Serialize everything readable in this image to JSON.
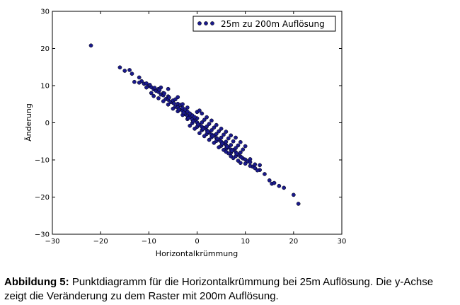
{
  "chart_data": {
    "type": "scatter",
    "title": "",
    "xlabel": "Horizontalkrümmung",
    "ylabel": "Änderung",
    "xlim": [
      -30,
      30
    ],
    "ylim": [
      -30,
      30
    ],
    "xticks": [
      -30,
      -20,
      -10,
      0,
      10,
      20,
      30
    ],
    "yticks": [
      -30,
      -20,
      -10,
      0,
      10,
      20,
      30
    ],
    "grid": false,
    "legend_position": "top-right",
    "marker_color": "#1a1a8c",
    "series": [
      {
        "name": "25m zu 200m Auflösung",
        "color": "#1a1a8c",
        "points": [
          [
            -22,
            20.8
          ],
          [
            -16,
            14.9
          ],
          [
            -15,
            14.0
          ],
          [
            -14,
            14.2
          ],
          [
            -13.5,
            13.2
          ],
          [
            -12,
            12.2
          ],
          [
            -11.5,
            11.2
          ],
          [
            -11,
            10.5
          ],
          [
            -12,
            10.8
          ],
          [
            -10,
            9.9
          ],
          [
            -10.5,
            9.5
          ],
          [
            -9.5,
            9.6
          ],
          [
            -9,
            9.0
          ],
          [
            -8.5,
            8.6
          ],
          [
            -8,
            8.3
          ],
          [
            -7.5,
            7.6
          ],
          [
            -7,
            7.4
          ],
          [
            -6.5,
            6.4
          ],
          [
            -6,
            6.2
          ],
          [
            -5.5,
            5.6
          ],
          [
            -5,
            5.4
          ],
          [
            -4.5,
            4.3
          ],
          [
            -4,
            4.1
          ],
          [
            -3.5,
            3.6
          ],
          [
            -3,
            3.2
          ],
          [
            -2.5,
            2.3
          ],
          [
            -2,
            1.9
          ],
          [
            -1.5,
            1.6
          ],
          [
            -1,
            0.9
          ],
          [
            -0.5,
            0.6
          ],
          [
            0,
            0.1
          ],
          [
            0.5,
            -0.6
          ],
          [
            1,
            -1.1
          ],
          [
            1.5,
            -1.4
          ],
          [
            2,
            -2.0
          ],
          [
            2.5,
            -2.6
          ],
          [
            3,
            -3.2
          ],
          [
            3.5,
            -3.4
          ],
          [
            4,
            -4.1
          ],
          [
            4.5,
            -4.6
          ],
          [
            5,
            -5.1
          ],
          [
            5.5,
            -5.5
          ],
          [
            6,
            -6.0
          ],
          [
            6.5,
            -6.6
          ],
          [
            7,
            -7.2
          ],
          [
            7.5,
            -7.3
          ],
          [
            8,
            -7.9
          ],
          [
            8.5,
            -8.6
          ],
          [
            9,
            -9.1
          ],
          [
            9.5,
            -9.6
          ],
          [
            10,
            -9.9
          ],
          [
            10.5,
            -10.4
          ],
          [
            11,
            -10.6
          ],
          [
            11.5,
            -11.8
          ],
          [
            12,
            -12.2
          ],
          [
            13,
            -12.7
          ],
          [
            14,
            -13.8
          ],
          [
            15,
            -15.5
          ],
          [
            15.5,
            -16.4
          ],
          [
            16,
            -16.2
          ],
          [
            17,
            -17.0
          ],
          [
            18,
            -17.5
          ],
          [
            20,
            -19.4
          ],
          [
            21,
            -21.8
          ],
          [
            -9,
            7.2
          ],
          [
            -8,
            6.6
          ],
          [
            -7,
            5.8
          ],
          [
            -6,
            4.9
          ],
          [
            -5,
            3.8
          ],
          [
            -4,
            3.1
          ],
          [
            -3,
            2.1
          ],
          [
            -2,
            1.0
          ],
          [
            -1,
            -0.1
          ],
          [
            0,
            -1.1
          ],
          [
            1,
            -2.0
          ],
          [
            2,
            -3.0
          ],
          [
            3,
            -3.9
          ],
          [
            4,
            -4.9
          ],
          [
            5,
            -6.2
          ],
          [
            6,
            -7.0
          ],
          [
            7,
            -8.1
          ],
          [
            8,
            -9.0
          ],
          [
            -8,
            9.1
          ],
          [
            -7,
            8.0
          ],
          [
            -6,
            7.1
          ],
          [
            -5,
            6.0
          ],
          [
            -4,
            5.1
          ],
          [
            -3,
            4.0
          ],
          [
            -2,
            3.0
          ],
          [
            -1,
            2.0
          ],
          [
            0,
            1.2
          ],
          [
            1,
            0.1
          ],
          [
            2,
            -1.0
          ],
          [
            3,
            -2.0
          ],
          [
            4,
            -3.0
          ],
          [
            5,
            -4.0
          ],
          [
            6,
            -5.1
          ],
          [
            7,
            -6.0
          ],
          [
            8,
            -6.8
          ],
          [
            9,
            -8.0
          ],
          [
            -6,
            9.1
          ],
          [
            -4,
            6.9
          ],
          [
            -2,
            4.1
          ],
          [
            0,
            2.9
          ],
          [
            0.5,
            3.3
          ],
          [
            1,
            2.5
          ],
          [
            2,
            1.5
          ],
          [
            3,
            0.6
          ],
          [
            4,
            -0.6
          ],
          [
            5,
            -1.6
          ],
          [
            6,
            -2.4
          ],
          [
            7,
            -3.4
          ],
          [
            8,
            -4.0
          ],
          [
            9,
            -5.2
          ],
          [
            10,
            -6.3
          ],
          [
            -1.5,
            -0.8
          ],
          [
            -0.5,
            -1.6
          ],
          [
            0.5,
            -2.8
          ],
          [
            1.5,
            -3.6
          ],
          [
            2.5,
            -4.6
          ],
          [
            3.5,
            -5.4
          ],
          [
            4.5,
            -6.6
          ],
          [
            5.5,
            -7.3
          ],
          [
            6.5,
            -8.2
          ],
          [
            7.5,
            -9.5
          ],
          [
            8.5,
            -10.2
          ],
          [
            10,
            -11.0
          ],
          [
            11,
            -11.6
          ],
          [
            12,
            -11.2
          ],
          [
            12.5,
            -12.8
          ],
          [
            -10.5,
            10.6
          ],
          [
            -7.5,
            9.5
          ],
          [
            -9.5,
            8.0
          ],
          [
            -3.5,
            4.8
          ],
          [
            -2.5,
            3.5
          ],
          [
            -1.5,
            2.5
          ],
          [
            -0.5,
            1.5
          ],
          [
            1.5,
            0.8
          ],
          [
            2.5,
            -0.3
          ],
          [
            3.5,
            -1.3
          ],
          [
            4.5,
            -2.3
          ],
          [
            5.5,
            -3.2
          ],
          [
            6.5,
            -4.2
          ],
          [
            7.5,
            -5.0
          ],
          [
            8.5,
            -6.1
          ],
          [
            9.5,
            -7.2
          ],
          [
            -13,
            11.0
          ],
          [
            -9.8,
            10.2
          ],
          [
            -8.8,
            9.4
          ],
          [
            -7.8,
            8.8
          ],
          [
            -6.8,
            7.9
          ],
          [
            -5.8,
            6.8
          ],
          [
            -4.8,
            5.2
          ],
          [
            -3.8,
            3.6
          ],
          [
            -2.8,
            2.7
          ],
          [
            -1.8,
            1.3
          ],
          [
            -0.8,
            0.4
          ],
          [
            0.2,
            -0.4
          ],
          [
            1.2,
            -1.6
          ],
          [
            2.2,
            -2.4
          ],
          [
            3.2,
            -3.6
          ],
          [
            4.2,
            -4.3
          ],
          [
            5.2,
            -5.6
          ],
          [
            6.2,
            -6.4
          ],
          [
            7.2,
            -7.5
          ],
          [
            8.2,
            -8.3
          ],
          [
            9.2,
            -9.3
          ],
          [
            11,
            -9.8
          ],
          [
            13,
            -11.4
          ],
          [
            -4.5,
            6.3
          ],
          [
            -3.0,
            5.0
          ],
          [
            6.0,
            -7.8
          ],
          [
            7.0,
            -9.0
          ],
          [
            9.0,
            -10.8
          ]
        ]
      }
    ]
  },
  "caption": {
    "label": "Abbildung 5:",
    "text": " Punktdiagramm für die Horizontalkrümmung bei 25m Auflösung. Die y-Achse zeigt die Veränderung zu dem Raster mit 200m Auflösung."
  }
}
